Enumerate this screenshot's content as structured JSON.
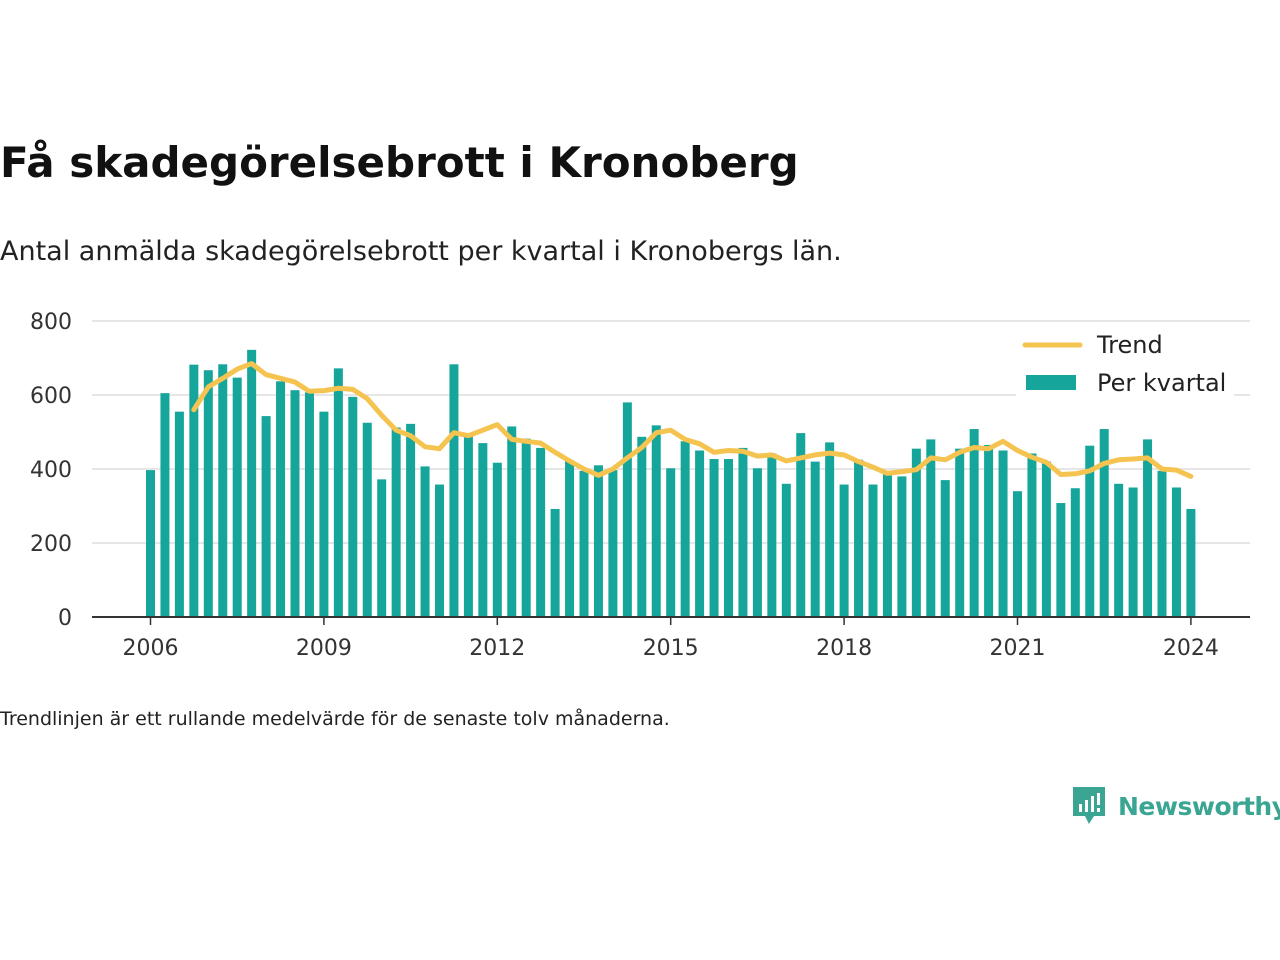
{
  "title": "Få skadegörelsebrott i Kronoberg",
  "subtitle": "Antal anmälda skadegörelsebrott per kvartal i Kronobergs län.",
  "note": "Trendlinjen är ett rullande medelvärde för de senaste tolv månaderna.",
  "brand": {
    "name": "Newsworthy",
    "icon": "newsworthy-logo-icon"
  },
  "colors": {
    "bars": "#16a59a",
    "trend": "#f5c350",
    "grid": "#dddddd",
    "axis": "#333333"
  },
  "chart_data": {
    "type": "bar",
    "legend_position": "top-right",
    "grid": true,
    "ylim": [
      0,
      800
    ],
    "yticks": [
      0,
      200,
      400,
      600,
      800
    ],
    "xticks": [
      "2006",
      "2009",
      "2012",
      "2015",
      "2018",
      "2021",
      "2024"
    ],
    "categories": [
      "2006 Q1",
      "2006 Q2",
      "2006 Q3",
      "2006 Q4",
      "2007 Q1",
      "2007 Q2",
      "2007 Q3",
      "2007 Q4",
      "2008 Q1",
      "2008 Q2",
      "2008 Q3",
      "2008 Q4",
      "2009 Q1",
      "2009 Q2",
      "2009 Q3",
      "2009 Q4",
      "2010 Q1",
      "2010 Q2",
      "2010 Q3",
      "2010 Q4",
      "2011 Q1",
      "2011 Q2",
      "2011 Q3",
      "2011 Q4",
      "2012 Q1",
      "2012 Q2",
      "2012 Q3",
      "2012 Q4",
      "2013 Q1",
      "2013 Q2",
      "2013 Q3",
      "2013 Q4",
      "2014 Q1",
      "2014 Q2",
      "2014 Q3",
      "2014 Q4",
      "2015 Q1",
      "2015 Q2",
      "2015 Q3",
      "2015 Q4",
      "2016 Q1",
      "2016 Q2",
      "2016 Q3",
      "2016 Q4",
      "2017 Q1",
      "2017 Q2",
      "2017 Q3",
      "2017 Q4",
      "2018 Q1",
      "2018 Q2",
      "2018 Q3",
      "2018 Q4",
      "2019 Q1",
      "2019 Q2",
      "2019 Q3",
      "2019 Q4",
      "2020 Q1",
      "2020 Q2",
      "2020 Q3",
      "2020 Q4",
      "2021 Q1",
      "2021 Q2",
      "2021 Q3",
      "2021 Q4",
      "2022 Q1",
      "2022 Q2",
      "2022 Q3",
      "2022 Q4",
      "2023 Q1",
      "2023 Q2",
      "2023 Q3",
      "2023 Q4",
      "2024 Q1"
    ],
    "series": [
      {
        "name": "Per kvartal",
        "type": "bar",
        "values": [
          397,
          605,
          555,
          682,
          667,
          683,
          647,
          722,
          543,
          637,
          613,
          607,
          555,
          672,
          595,
          525,
          372,
          512,
          522,
          407,
          358,
          683,
          488,
          470,
          417,
          515,
          482,
          457,
          292,
          423,
          395,
          410,
          397,
          580,
          487,
          518,
          402,
          475,
          450,
          427,
          427,
          457,
          402,
          442,
          360,
          497,
          420,
          472,
          358,
          425,
          358,
          392,
          380,
          455,
          480,
          370,
          455,
          508,
          465,
          450,
          340,
          442,
          420,
          308,
          348,
          463,
          508,
          360,
          350,
          480,
          395,
          350,
          292
        ]
      },
      {
        "name": "Trend",
        "type": "line",
        "values": [
          null,
          null,
          null,
          560,
          622,
          645,
          670,
          685,
          655,
          645,
          635,
          610,
          612,
          618,
          615,
          590,
          545,
          505,
          490,
          460,
          455,
          498,
          490,
          505,
          520,
          480,
          475,
          470,
          445,
          422,
          400,
          383,
          400,
          430,
          458,
          498,
          505,
          480,
          468,
          445,
          450,
          448,
          435,
          438,
          422,
          430,
          438,
          443,
          438,
          420,
          405,
          388,
          393,
          398,
          430,
          425,
          445,
          458,
          455,
          475,
          450,
          432,
          418,
          385,
          387,
          395,
          415,
          425,
          427,
          430,
          400,
          397,
          380
        ]
      }
    ]
  }
}
